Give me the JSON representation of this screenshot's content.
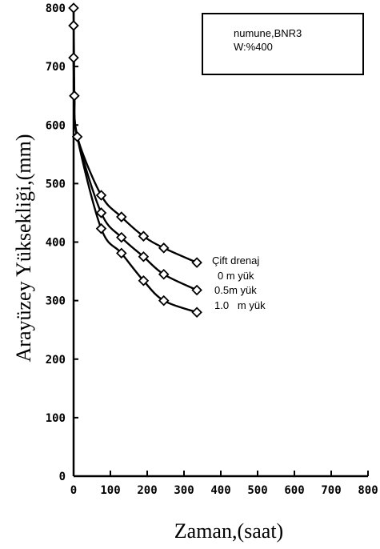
{
  "chart_data": {
    "type": "line",
    "xlabel": "Zaman,(saat)",
    "ylabel": "Arayüzey Yüksekliği,(mm)",
    "xlim": [
      0,
      800
    ],
    "ylim": [
      0,
      800
    ],
    "x_ticks": [
      0,
      100,
      200,
      300,
      400,
      500,
      600,
      700,
      800
    ],
    "y_ticks": [
      0,
      100,
      200,
      300,
      400,
      500,
      600,
      700,
      800
    ],
    "grid": false,
    "annotation_box": [
      "numune,BNR3",
      "W:%400"
    ],
    "legend_title": "Çift drenaj",
    "shared_start": {
      "x": [
        0,
        0,
        0,
        2,
        10
      ],
      "y": [
        800,
        770,
        715,
        650,
        580
      ]
    },
    "series": [
      {
        "name": "0 m yük",
        "x": [
          75,
          130,
          190,
          245,
          335
        ],
        "y": [
          480,
          443,
          410,
          390,
          365
        ]
      },
      {
        "name": "0.5m yük",
        "x": [
          75,
          130,
          190,
          245,
          335
        ],
        "y": [
          450,
          408,
          375,
          345,
          318
        ]
      },
      {
        "name": "1.0   m yük",
        "x": [
          75,
          130,
          190,
          245,
          335
        ],
        "y": [
          423,
          381,
          334,
          300,
          280
        ]
      }
    ]
  }
}
